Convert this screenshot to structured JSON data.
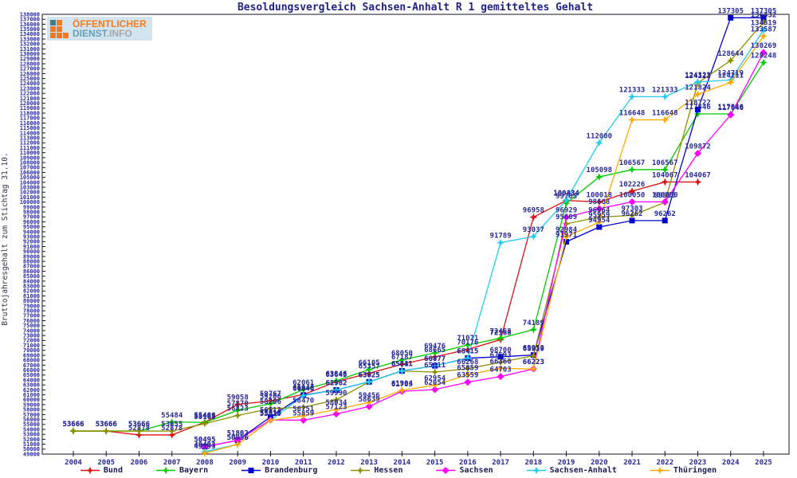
{
  "title": "Besoldungsvergleich Sachsen-Anhalt R 1 gemitteltes Gehalt",
  "y_axis": {
    "label": "Bruttojahresgehalt zum Stichtag 31.10.",
    "min": 49000,
    "max": 138000,
    "step": 1000
  },
  "x_axis": {
    "years": [
      "2004",
      "2005",
      "2006",
      "2007",
      "2008",
      "2009",
      "2010",
      "2011",
      "2012",
      "2013",
      "2014",
      "2015",
      "2016",
      "2017",
      "2018",
      "2019",
      "2020",
      "2021",
      "2022",
      "2023",
      "2024",
      "2025"
    ]
  },
  "logo": {
    "line1": "ÖFFENTLICHER",
    "line2_a": "DIENST",
    "line2_b": ".INFO"
  },
  "colors": {
    "label_text": "#2a2a99",
    "tick_text": "#2a2a99",
    "frame": "#15152a",
    "title_text": "#222288",
    "logo_orange": "#f47a20",
    "logo_teal": "#3d7d8d",
    "logo_bg": "#d3e4ef"
  },
  "chart_data": {
    "type": "line",
    "x": [
      2004,
      2005,
      2006,
      2007,
      2008,
      2009,
      2010,
      2011,
      2012,
      2013,
      2014,
      2015,
      2016,
      2017,
      2018,
      2019,
      2020,
      2021,
      2022,
      2023,
      2024,
      2025
    ],
    "ylim": [
      49000,
      138000
    ],
    "grid": false,
    "legend_position": "bottom",
    "title": "Besoldungsvergleich Sachsen-Anhalt R 1 gemitteltes Gehalt",
    "ylabel": "Bruttojahresgehalt zum Stichtag 31.10.",
    "series": [
      {
        "name": "Bund",
        "color": "#dd1111",
        "marker": "star",
        "values": [
          53666,
          53666,
          52878,
          52878,
          55466,
          59058,
          59767,
          61046,
          63645,
          65357,
          67187,
          68665,
          70176,
          72168,
          96958,
          100334,
          100018,
          102226,
          104067,
          104067,
          null,
          null
        ]
      },
      {
        "name": "Bayern",
        "color": "#00cc00",
        "marker": "star",
        "values": [
          53666,
          53666,
          53666,
          55484,
          55403,
          57870,
          59206,
          62061,
          63846,
          66105,
          68050,
          69476,
          71071,
          72468,
          74189,
          99765,
          105098,
          106567,
          106567,
          117846,
          117846,
          128248
        ]
      },
      {
        "name": "Brandenburg",
        "color": "#0000cc",
        "marker": "square",
        "values": [
          null,
          null,
          null,
          null,
          50495,
          51802,
          56513,
          60946,
          61982,
          63625,
          65841,
          66877,
          68415,
          68700,
          69050,
          91971,
          94954,
          96262,
          96262,
          118722,
          137305,
          137305
        ]
      },
      {
        "name": "Hessen",
        "color": "#8f8f00",
        "marker": "star",
        "values": [
          53666,
          53666,
          53666,
          53655,
          55163,
          56823,
          58206,
          58470,
          59990,
          63625,
          65811,
          65611,
          66268,
          67593,
          68919,
          95609,
          96964,
          97303,
          99950,
          124123,
          128644,
          136432
        ]
      },
      {
        "name": "Sachsen",
        "color": "#ff00ff",
        "marker": "diamond",
        "values": [
          null,
          null,
          null,
          null,
          50495,
          51802,
          55913,
          55859,
          57123,
          58639,
          61703,
          62054,
          63559,
          64703,
          66223,
          96929,
          98668,
          100050,
          100050,
          109872,
          117646,
          130269
        ]
      },
      {
        "name": "Sachsen-Anhalt",
        "color": "#22ccee",
        "marker": "star",
        "values": [
          null,
          null,
          null,
          null,
          49493,
          50956,
          55813,
          60846,
          61982,
          63625,
          65841,
          66877,
          68415,
          91789,
          93037,
          100434,
          112000,
          121333,
          121333,
          124323,
          124719,
          134819
        ]
      },
      {
        "name": "Thüringen",
        "color": "#ffaa00",
        "marker": "star",
        "values": [
          null,
          null,
          null,
          null,
          49193,
          50956,
          55810,
          56751,
          58034,
          59456,
          61904,
          62954,
          65059,
          66360,
          66223,
          92984,
          95959,
          116648,
          116648,
          121824,
          124211,
          133587
        ]
      }
    ]
  }
}
